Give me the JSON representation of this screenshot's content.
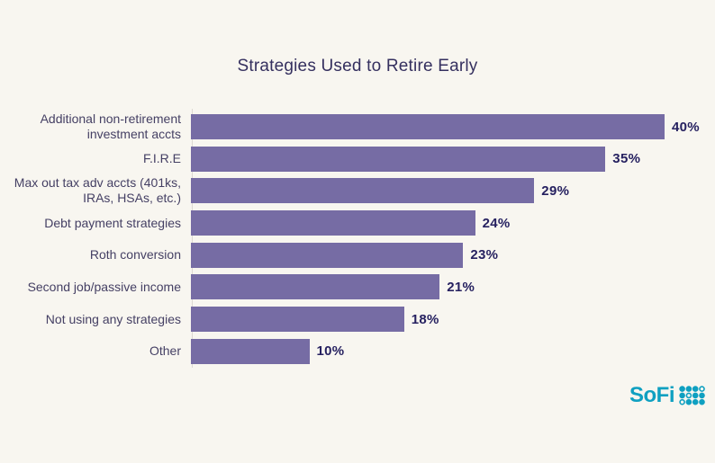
{
  "page": {
    "background": "#F8F6F0"
  },
  "title": "Strategies Used to Retire Early",
  "chart_data": {
    "type": "bar",
    "orientation": "horizontal",
    "title": "Strategies Used to Retire Early",
    "categories": [
      "Additional non-retirement\ninvestment accts",
      "F.I.R.E",
      "Max out tax adv accts (401ks,\nIRAs, HSAs, etc.)",
      "Debt payment strategies",
      "Roth conversion",
      "Second job/passive income",
      "Not using any strategies",
      "Other"
    ],
    "values": [
      40,
      35,
      29,
      24,
      23,
      21,
      18,
      10
    ],
    "value_labels": [
      "40%",
      "35%",
      "29%",
      "24%",
      "23%",
      "21%",
      "18%",
      "10%"
    ],
    "unit": "%",
    "xlim": [
      0,
      40
    ],
    "grid": false,
    "legend": false,
    "bar_color": "#766CA4",
    "value_label_color": "#262160",
    "category_label_color": "#454064",
    "title_color": "#35305F",
    "axis_line_color": "#DCD9D2"
  },
  "branding": {
    "logo_text": "SoFi",
    "logo_color": "#0FA0C1",
    "logo_mark": "sofi-dot-grid-icon"
  }
}
